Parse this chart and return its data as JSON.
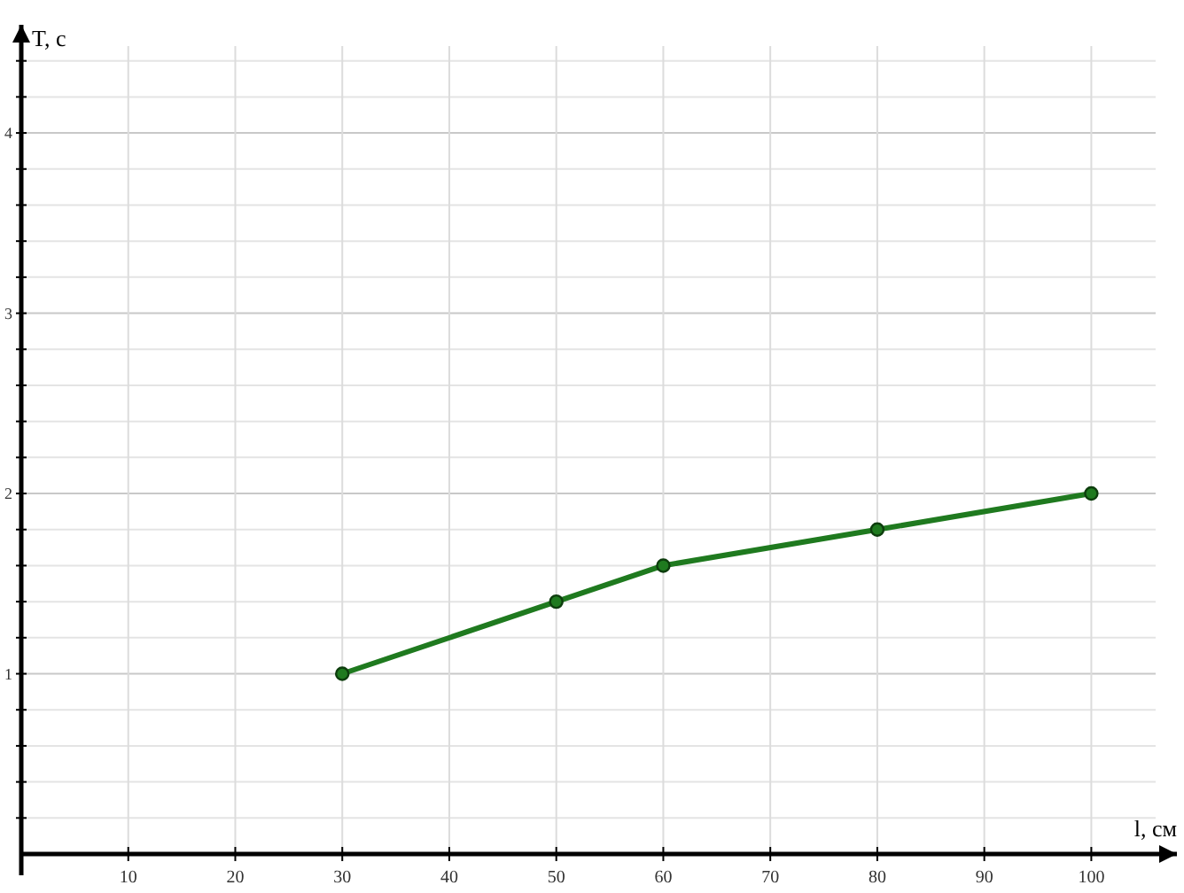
{
  "chart_data": {
    "type": "line",
    "xlabel": "l, см",
    "ylabel": "T, с",
    "x": [
      30,
      50,
      60,
      80,
      100
    ],
    "series": [
      {
        "color": "#1f7a1f",
        "values": [
          1,
          1.4,
          1.6,
          1.8,
          2
        ]
      }
    ],
    "xlim": [
      0,
      108
    ],
    "xticks": [
      10,
      20,
      30,
      40,
      50,
      60,
      70,
      80,
      90,
      100
    ],
    "ylim": [
      0,
      4.6
    ],
    "yticks": [
      {
        "value": 0.2,
        "label": null
      },
      {
        "value": 0.4,
        "label": null
      },
      {
        "value": 0.6,
        "label": null
      },
      {
        "value": 0.8,
        "label": null
      },
      1,
      {
        "value": 1.2,
        "label": null
      },
      {
        "value": 1.4,
        "label": null
      },
      {
        "value": 1.6,
        "label": null
      },
      {
        "value": 1.8,
        "label": null
      },
      2,
      {
        "value": 2.2,
        "label": null
      },
      {
        "value": 2.4,
        "label": null
      },
      {
        "value": 2.6,
        "label": null
      },
      {
        "value": 2.8,
        "label": null
      },
      3,
      {
        "value": 3.2,
        "label": null
      },
      {
        "value": 3.4,
        "label": null
      },
      {
        "value": 3.6,
        "label": null
      },
      {
        "value": 3.8,
        "label": null
      },
      4,
      {
        "value": 4.2,
        "label": null
      },
      {
        "value": 4.4,
        "label": null
      }
    ],
    "grid": true,
    "marker": "circle",
    "line_style": "solid"
  }
}
